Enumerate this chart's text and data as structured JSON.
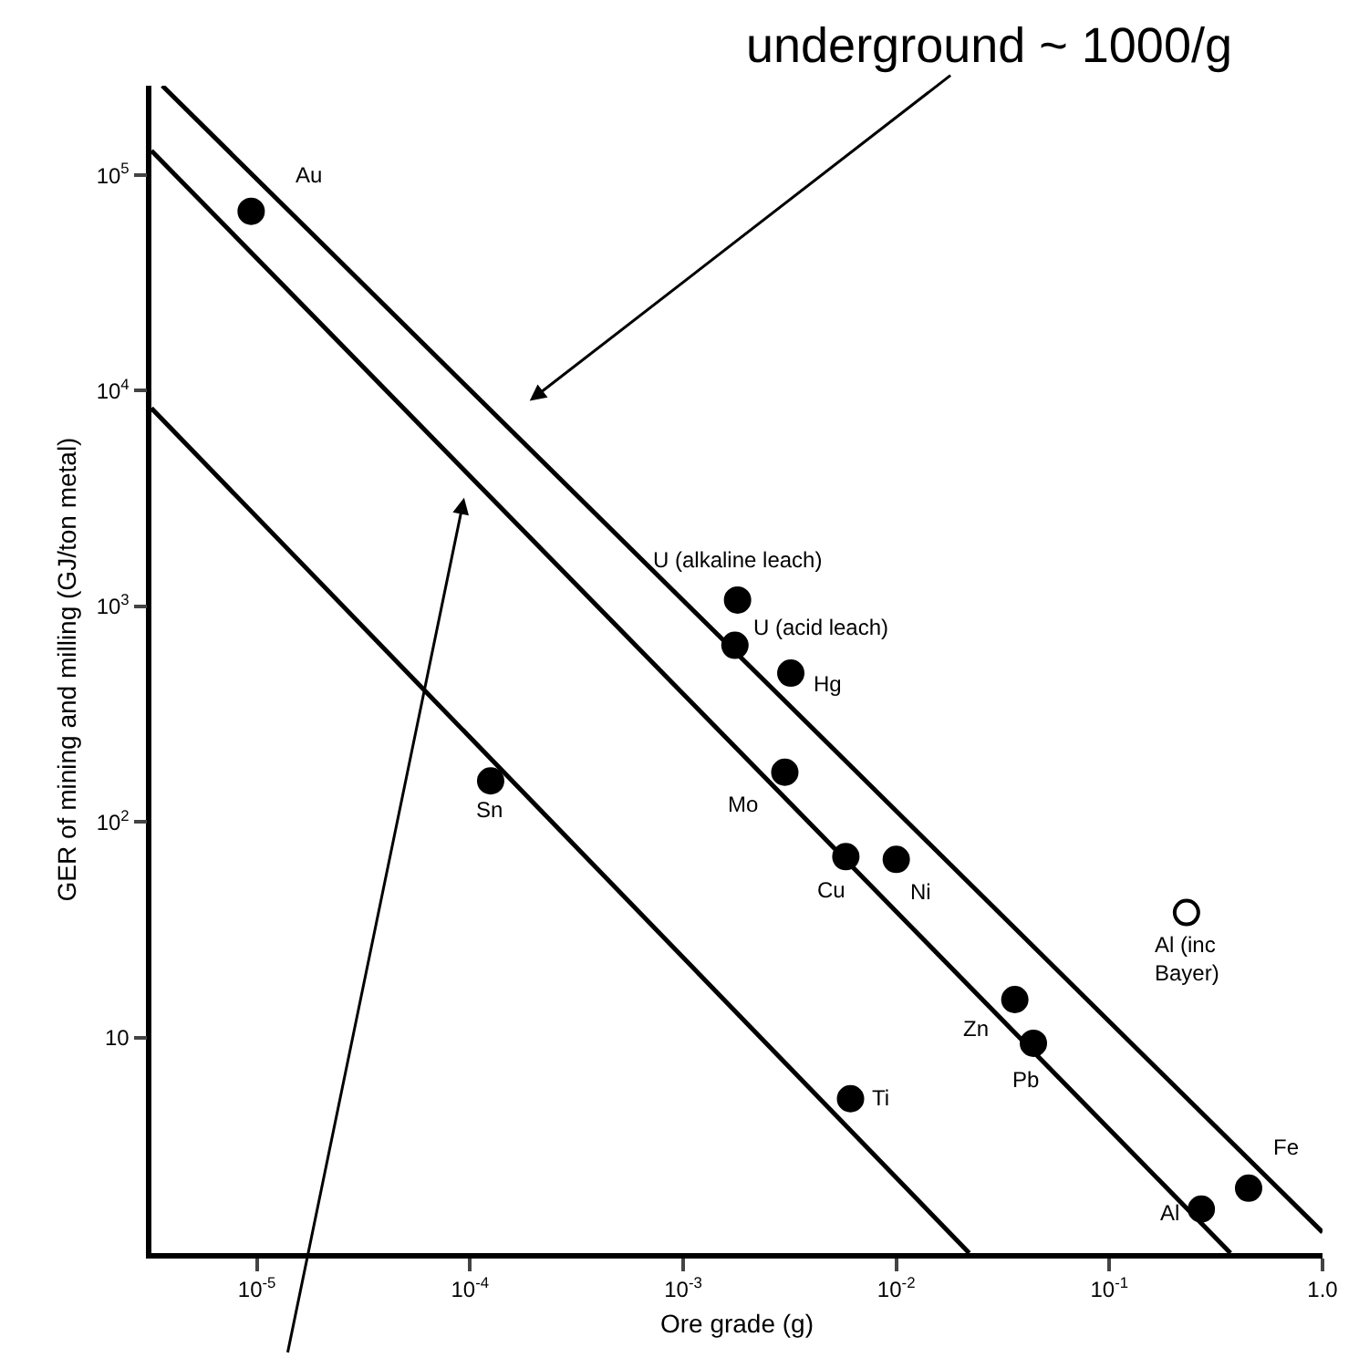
{
  "chart_data": {
    "type": "scatter",
    "xlabel": "Ore grade (g)",
    "ylabel": "GER of mining and milling (GJ/ton metal)",
    "log": "xy",
    "marker": "circle",
    "xlim": [
      3.2e-06,
      1.0
    ],
    "ylim": [
      1,
      260000
    ],
    "xticks": [
      {
        "value": 1e-05,
        "label": "10$^{-5}$"
      },
      {
        "value": 0.0001,
        "label": "10$^{-4}$"
      },
      {
        "value": 0.001,
        "label": "10$^{-3}$"
      },
      {
        "value": 0.01,
        "label": "10$^{-2}$"
      },
      {
        "value": 0.1,
        "label": "10$^{-1}$"
      },
      {
        "value": 1.0,
        "label": "1.0"
      }
    ],
    "yticks": [
      10,
      {
        "value": 100,
        "label": "10$^{2}$"
      },
      {
        "value": 1000,
        "label": "10$^{3}$"
      },
      {
        "value": 10000,
        "label": "10$^{4}$"
      },
      {
        "value": 100000,
        "label": "10$^{5}$"
      }
    ],
    "series": [
      {
        "type": "line",
        "marker": "none",
        "color": "#000000",
        "x": [
          3.6e-06,
          1.0
        ],
        "values": [
          260000,
          1.25
        ]
      },
      {
        "type": "line",
        "marker": "none",
        "color": "#000000",
        "x": [
          3.2e-06,
          0.37
        ],
        "values": [
          130000,
          1
        ]
      },
      {
        "type": "line",
        "marker": "none",
        "color": "#000000",
        "x": [
          3.2e-06,
          0.022
        ],
        "values": [
          8300,
          1
        ]
      },
      {
        "color": "#000000",
        "x": [
          9.4e-06,
          0.000125,
          0.0018,
          0.00175,
          0.0032,
          0.003,
          0.0058,
          0.01,
          0.036,
          0.044,
          0.0061,
          0.45,
          0.27
        ],
        "values": [
          68000,
          155,
          1070,
          660,
          490,
          170,
          69,
          67,
          15,
          9.4,
          5.2,
          2.0,
          1.6
        ]
      },
      {
        "color": "#ffffff",
        "x": [
          0.23
        ],
        "values": [
          38
        ]
      }
    ],
    "annotations": [
      "underground ~ 1000/g",
      {
        "text": "Au",
        "x": 9.4e-06,
        "y": 68000
      },
      {
        "text": "Sn",
        "x": 0.000125,
        "y": 155
      },
      {
        "text": "U (alkaline leach)",
        "x": 0.0018,
        "y": 1070
      },
      {
        "text": "U (acid leach)",
        "x": 0.00175,
        "y": 660
      },
      {
        "text": "Hg",
        "x": 0.0032,
        "y": 490
      },
      {
        "text": "Mo",
        "x": 0.003,
        "y": 170
      },
      {
        "text": "Cu",
        "x": 0.0058,
        "y": 69
      },
      {
        "text": "Ni",
        "x": 0.01,
        "y": 67
      },
      {
        "text": "Zn",
        "x": 0.036,
        "y": 15
      },
      {
        "text": "Pb",
        "x": 0.044,
        "y": 9.4
      },
      {
        "text": "Ti",
        "x": 0.0061,
        "y": 5.2
      },
      {
        "text": "Fe",
        "x": 0.45,
        "y": 2.0
      },
      {
        "text": "Al",
        "x": 0.27,
        "y": 1.6
      },
      {
        "text": "Al (inc\nBayer)",
        "x": 0.23,
        "y": 38
      }
    ]
  }
}
